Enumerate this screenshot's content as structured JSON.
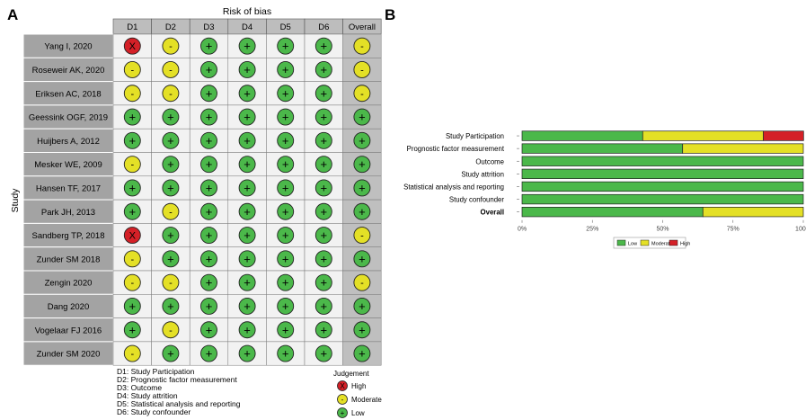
{
  "panel_a": {
    "label": "A",
    "title": "Risk of bias",
    "y_axis_label": "Study",
    "domains": [
      "D1",
      "D2",
      "D3",
      "D4",
      "D5",
      "D6",
      "Overall"
    ],
    "studies": [
      {
        "name": "Yang I, 2020",
        "judgements": [
          "High",
          "Moderate",
          "Low",
          "Low",
          "Low",
          "Low",
          "Moderate"
        ]
      },
      {
        "name": "Roseweir AK, 2020",
        "judgements": [
          "Moderate",
          "Moderate",
          "Low",
          "Low",
          "Low",
          "Low",
          "Moderate"
        ]
      },
      {
        "name": "Eriksen AC, 2018",
        "judgements": [
          "Moderate",
          "Moderate",
          "Low",
          "Low",
          "Low",
          "Low",
          "Moderate"
        ]
      },
      {
        "name": "Geessink OGF, 2019",
        "judgements": [
          "Low",
          "Low",
          "Low",
          "Low",
          "Low",
          "Low",
          "Low"
        ]
      },
      {
        "name": "Huijbers A, 2012",
        "judgements": [
          "Low",
          "Low",
          "Low",
          "Low",
          "Low",
          "Low",
          "Low"
        ]
      },
      {
        "name": "Mesker WE, 2009",
        "judgements": [
          "Moderate",
          "Low",
          "Low",
          "Low",
          "Low",
          "Low",
          "Low"
        ]
      },
      {
        "name": "Hansen TF, 2017",
        "judgements": [
          "Low",
          "Low",
          "Low",
          "Low",
          "Low",
          "Low",
          "Low"
        ]
      },
      {
        "name": "Park JH, 2013",
        "judgements": [
          "Low",
          "Moderate",
          "Low",
          "Low",
          "Low",
          "Low",
          "Low"
        ]
      },
      {
        "name": "Sandberg TP, 2018",
        "judgements": [
          "High",
          "Low",
          "Low",
          "Low",
          "Low",
          "Low",
          "Moderate"
        ]
      },
      {
        "name": "Zunder SM 2018",
        "judgements": [
          "Moderate",
          "Low",
          "Low",
          "Low",
          "Low",
          "Low",
          "Low"
        ]
      },
      {
        "name": "Zengin 2020",
        "judgements": [
          "Moderate",
          "Moderate",
          "Low",
          "Low",
          "Low",
          "Low",
          "Moderate"
        ]
      },
      {
        "name": "Dang 2020",
        "judgements": [
          "Low",
          "Low",
          "Low",
          "Low",
          "Low",
          "Low",
          "Low"
        ]
      },
      {
        "name": "Vogelaar FJ 2016",
        "judgements": [
          "Low",
          "Moderate",
          "Low",
          "Low",
          "Low",
          "Low",
          "Low"
        ]
      },
      {
        "name": "Zunder SM 2020",
        "judgements": [
          "Moderate",
          "Low",
          "Low",
          "Low",
          "Low",
          "Low",
          "Low"
        ]
      }
    ],
    "domain_key": [
      "D1: Study Participation",
      "D2: Prognostic factor measurement",
      "D3: Outcome",
      "D4: Study attrition",
      "D5: Statistical analysis and reporting",
      "D6: Study confounder"
    ],
    "judgement_legend": {
      "title": "Judgement",
      "items": [
        {
          "label": "High",
          "symbol": "X",
          "level": "High"
        },
        {
          "label": "Moderate",
          "symbol": "-",
          "level": "Moderate"
        },
        {
          "label": "Low",
          "symbol": "+",
          "level": "Low"
        }
      ]
    }
  },
  "panel_b": {
    "label": "B",
    "legend": [
      "Low",
      "Moderate",
      "High"
    ]
  },
  "colors": {
    "Low": "#4bb84a",
    "Moderate": "#e4e026",
    "High": "#d42027",
    "header_fill": "#bdbdbd",
    "study_fill": "#a3a3a3",
    "cell_fill": "#f2f2f2",
    "overall_fill": "#bfbfbf"
  },
  "chart_data": [
    {
      "type": "table",
      "title": "Risk of bias",
      "ylabel": "Study",
      "columns": [
        "D1",
        "D2",
        "D3",
        "D4",
        "D5",
        "D6",
        "Overall"
      ],
      "rows": [
        "Yang I, 2020",
        "Roseweir AK, 2020",
        "Eriksen AC, 2018",
        "Geessink OGF, 2019",
        "Huijbers A, 2012",
        "Mesker WE, 2009",
        "Hansen TF, 2017",
        "Park JH, 2013",
        "Sandberg TP, 2018",
        "Zunder SM 2018",
        "Zengin 2020",
        "Dang 2020",
        "Vogelaar FJ 2016",
        "Zunder SM 2020"
      ]
    },
    {
      "type": "bar",
      "orientation": "horizontal",
      "stacked": true,
      "categories": [
        "Study Participation",
        "Prognostic factor measurement",
        "Outcome",
        "Study attrition",
        "Statistical analysis and reporting",
        "Study confounder",
        "Overall"
      ],
      "bold_categories": [
        "Overall"
      ],
      "series": [
        {
          "name": "Low",
          "color": "#4bb84a",
          "values": [
            42.9,
            57.1,
            100,
            100,
            100,
            100,
            64.3
          ]
        },
        {
          "name": "Moderate",
          "color": "#e4e026",
          "values": [
            42.9,
            42.9,
            0,
            0,
            0,
            0,
            35.7
          ]
        },
        {
          "name": "High",
          "color": "#d42027",
          "values": [
            14.3,
            0,
            0,
            0,
            0,
            0,
            0
          ]
        }
      ],
      "xlim": [
        0,
        100
      ],
      "xticks": [
        "0%",
        "25%",
        "50%",
        "75%",
        "100%"
      ],
      "legend_position": "bottom"
    }
  ]
}
